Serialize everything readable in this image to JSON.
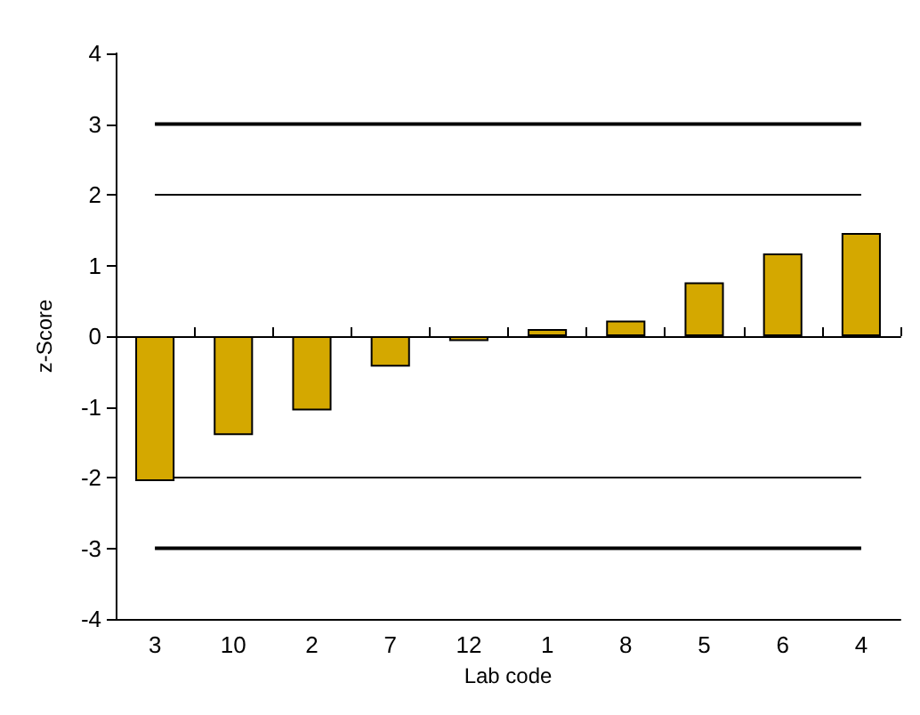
{
  "chart_data": {
    "type": "bar",
    "xlabel": "Lab code",
    "ylabel": "z-Score",
    "categories": [
      "3",
      "10",
      "2",
      "7",
      "12",
      "1",
      "8",
      "5",
      "6",
      "4"
    ],
    "values": [
      -2.05,
      -1.4,
      -1.05,
      -0.43,
      -0.07,
      0.1,
      0.22,
      0.76,
      1.17,
      1.46
    ],
    "color": "#d4a800",
    "ylim": [
      -4,
      4
    ],
    "yticks": [
      -4,
      -3,
      -2,
      -1,
      0,
      1,
      2,
      3,
      4
    ],
    "ref_lines": [
      {
        "axis": "y",
        "value": 3
      },
      {
        "axis": "y",
        "value": 2
      },
      {
        "axis": "y",
        "value": -2
      },
      {
        "axis": "y",
        "value": -3
      }
    ]
  }
}
